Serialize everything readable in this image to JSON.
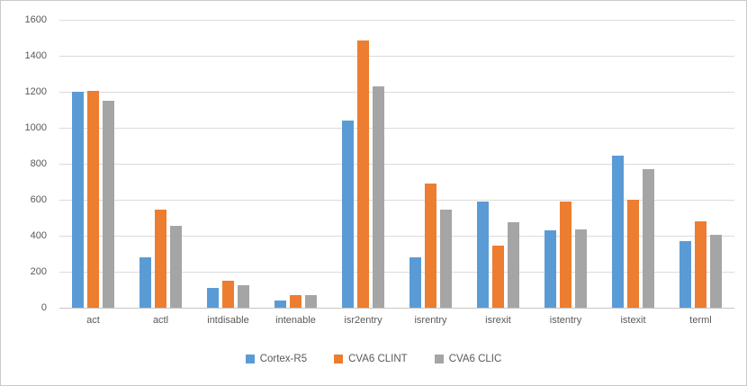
{
  "chart_data": {
    "type": "bar",
    "title": "",
    "xlabel": "",
    "ylabel": "",
    "categories": [
      "act",
      "actl",
      "intdisable",
      "intenable",
      "isr2entry",
      "isrentry",
      "isrexit",
      "istentry",
      "istexit",
      "terml"
    ],
    "series": [
      {
        "name": "Cortex-R5",
        "color": "#5B9BD5",
        "values": [
          1200,
          280,
          110,
          40,
          1040,
          280,
          590,
          430,
          845,
          370
        ]
      },
      {
        "name": "CVA6 CLINT",
        "color": "#ED7D31",
        "values": [
          1205,
          545,
          150,
          70,
          1485,
          690,
          345,
          590,
          600,
          480
        ]
      },
      {
        "name": "CVA6 CLIC",
        "color": "#A5A5A5",
        "values": [
          1150,
          455,
          125,
          70,
          1230,
          545,
          475,
          435,
          770,
          405
        ]
      }
    ],
    "ylim": [
      0,
      1600
    ],
    "ytick_step": 200,
    "yticks": [
      "0",
      "200",
      "400",
      "600",
      "800",
      "1000",
      "1200",
      "1400",
      "1600"
    ],
    "grid": true,
    "legend_position": "bottom"
  },
  "colors": {
    "grid": "#DCDCDC",
    "axis_text": "#595959",
    "background": "#FFFFFF",
    "frame_border": "#C9C9C9"
  }
}
